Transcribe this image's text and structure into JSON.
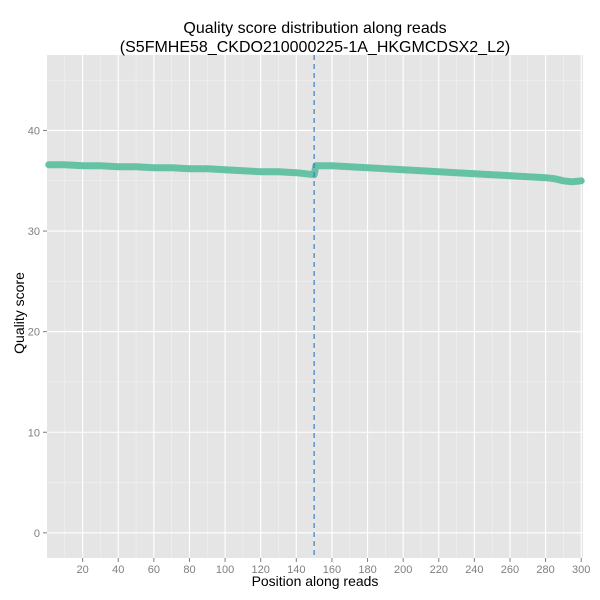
{
  "colors": {
    "panel_bg": "#e5e5e5",
    "grid_major": "#ffffff",
    "grid_minor": "#f2f2f2",
    "series": "#66c2a5",
    "vline": "#3b7dc4",
    "tick_text": "#7f7f7f",
    "tick_mark": "#7f7f7f"
  },
  "chart_data": {
    "type": "line",
    "title": "Quality score distribution along reads",
    "subtitle": "(S5FMHE58_CKDO210000225-1A_HKGMCDSX2_L2)",
    "xlabel": "Position along reads",
    "ylabel": "Quality score",
    "xlim": [
      0,
      301
    ],
    "ylim": [
      -2.5,
      47.5
    ],
    "x_ticks": [
      20,
      40,
      60,
      80,
      100,
      120,
      140,
      160,
      180,
      200,
      220,
      240,
      260,
      280,
      300
    ],
    "y_ticks": [
      0,
      10,
      20,
      30,
      40
    ],
    "grid": true,
    "legend": "none",
    "vline_x": 150,
    "series": [
      {
        "x": [
          1,
          10,
          20,
          30,
          40,
          50,
          60,
          70,
          80,
          90,
          100,
          110,
          120,
          130,
          140,
          145,
          150,
          151,
          155,
          160,
          170,
          180,
          190,
          200,
          210,
          220,
          230,
          240,
          250,
          260,
          270,
          280,
          285,
          290,
          295,
          300
        ],
        "values": [
          36.6,
          36.6,
          36.5,
          36.5,
          36.4,
          36.4,
          36.3,
          36.3,
          36.2,
          36.2,
          36.1,
          36.0,
          35.9,
          35.9,
          35.8,
          35.7,
          35.6,
          36.5,
          36.5,
          36.5,
          36.4,
          36.3,
          36.2,
          36.1,
          36.0,
          35.9,
          35.8,
          35.7,
          35.6,
          35.5,
          35.4,
          35.3,
          35.2,
          35.0,
          34.9,
          35.0
        ]
      }
    ]
  }
}
